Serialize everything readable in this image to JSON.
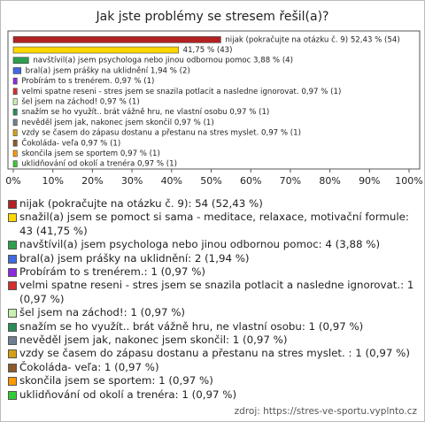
{
  "chart_data": {
    "type": "bar",
    "orientation": "horizontal",
    "title": "Jak jste problémy se stresem řešil(a)?",
    "values": [
      52.43,
      41.75,
      3.88,
      1.94,
      0.97,
      0.97,
      0.97,
      0.97,
      0.97,
      0.97,
      0.97,
      0.97,
      0.97
    ],
    "value_labels": [
      "nijak (pokračujte na otázku č. 9) 52,43 % (54)",
      "41,75 % (43)",
      "navštívil(a) jsem psychologa nebo jinou odbornou pomoc 3,88 % (4)",
      "bral(a) jsem prášky na uklidnění 1,94 % (2)",
      "Probírám to s trenérem. 0,97 % (1)",
      "velmi spatne reseni - stres jsem se snazila potlacit a nasledne ignorovat. 0,97 % (1)",
      "šel jsem na záchod! 0,97 % (1)",
      "snažím se ho využít.. brát vážně hru, ne vlastní osobu 0,97 % (1)",
      "nevěděl jsem jak, nakonec jsem skončil 0,97 % (1)",
      "vzdy se časem do zápasu dostanu a přestanu na stres myslet.  0,97 % (1)",
      "Čokoláda- veľa 0,97 % (1)",
      "skončila jsem se sportem 0,97 % (1)",
      "uklidňování od okolí a trenéra 0,97 % (1)"
    ],
    "legend_labels": [
      "nijak (pokračujte na otázku č. 9): 54 (52,43 %)",
      "snažil(a) jsem se pomoct si sama - meditace, relaxace, motivační formule: 43 (41,75 %)",
      "navštívil(a) jsem psychologa nebo jinou odbornou pomoc: 4 (3,88 %)",
      "bral(a) jsem prášky na uklidnění: 2 (1,94 %)",
      "Probírám to s trenérem.: 1 (0,97 %)",
      "velmi spatne reseni - stres jsem se snazila potlacit a nasledne ignorovat.: 1 (0,97 %)",
      "šel jsem na záchod!: 1 (0,97 %)",
      "snažím se ho využít.. brát vážně hru, ne vlastní osobu: 1 (0,97 %)",
      "nevěděl jsem jak, nakonec jsem skončil: 1 (0,97 %)",
      "vzdy se časem do zápasu dostanu a přestanu na stres myslet. : 1 (0,97 %)",
      "Čokoláda- veľa: 1 (0,97 %)",
      "skončila jsem se sportem: 1 (0,97 %)",
      "uklidňování od okolí a trenéra: 1 (0,97 %)"
    ],
    "colors": [
      "#b22222",
      "#ffd700",
      "#2e9e4f",
      "#4169e1",
      "#8a2be2",
      "#d62e2e",
      "#c8f0b0",
      "#2e8b57",
      "#708090",
      "#d4a017",
      "#8b5a2b",
      "#ff9900",
      "#33cc33"
    ],
    "xlim": [
      0,
      100
    ],
    "xticks": [
      {
        "value": 0,
        "label": "0%"
      },
      {
        "value": 10,
        "label": "10%"
      },
      {
        "value": 20,
        "label": "20%"
      },
      {
        "value": 30,
        "label": "30%"
      },
      {
        "value": 40,
        "label": "40%"
      },
      {
        "value": 50,
        "label": "50%"
      },
      {
        "value": 60,
        "label": "60%"
      },
      {
        "value": 70,
        "label": "70%"
      },
      {
        "value": 80,
        "label": "80%"
      },
      {
        "value": 90,
        "label": "90%"
      },
      {
        "value": 100,
        "label": "100%"
      }
    ],
    "grid": false,
    "source": "zdroj: https://stres-ve-sportu.vyplnto.cz"
  }
}
